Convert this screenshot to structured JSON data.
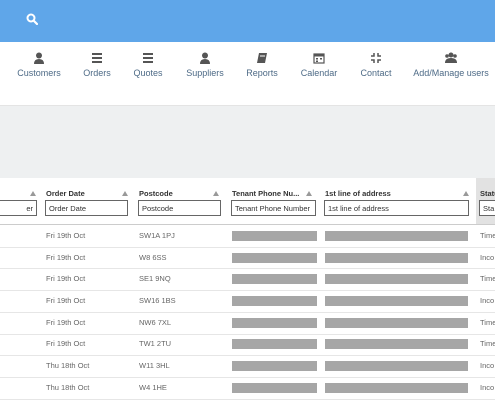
{
  "nav": [
    {
      "label": "Customers"
    },
    {
      "label": "Orders"
    },
    {
      "label": "Quotes"
    },
    {
      "label": "Suppliers"
    },
    {
      "label": "Reports"
    },
    {
      "label": "Calendar"
    },
    {
      "label": "Contact"
    },
    {
      "label": "Add/Manage users"
    }
  ],
  "table": {
    "first_column_filter": "er",
    "headers": [
      "Order Date",
      "Postcode",
      "Tenant Phone Nu...",
      "1st line of address",
      "Statu"
    ],
    "filters": [
      "Order Date",
      "Postcode",
      "Tenant Phone Number",
      "1st line of address",
      "Sta"
    ],
    "rows": [
      [
        "Fri 19th Oct",
        "SW1A 1PJ",
        "Time"
      ],
      [
        "Fri 19th Oct",
        "W8 6SS",
        "Inco"
      ],
      [
        "Fri 19th Oct",
        "SE1 9NQ",
        "Time"
      ],
      [
        "Fri 19th Oct",
        "SW16 1BS",
        "Inco"
      ],
      [
        "Fri 19th Oct",
        "NW6 7XL",
        "Time"
      ],
      [
        "Fri 19th Oct",
        "TW1 2TU",
        "Time"
      ],
      [
        "Thu 18th Oct",
        "W11 3HL",
        "Inco"
      ],
      [
        "Thu 18th Oct",
        "W4 1HE",
        "Inco"
      ]
    ]
  }
}
